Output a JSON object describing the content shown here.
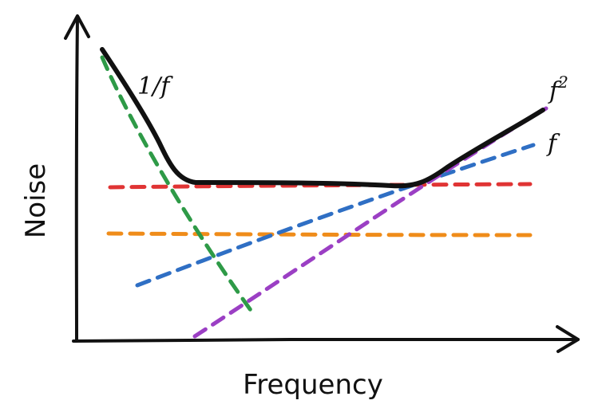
{
  "axes": {
    "x_label": "Frequency",
    "y_label": "Noise"
  },
  "curve_labels": {
    "one_over_f": "1/f",
    "f_base": "f",
    "f_squared_base": "f",
    "f_squared_exp": "2",
    "f_linear": "f"
  },
  "colors": {
    "axis": "#111111",
    "total_noise": "#111111",
    "one_over_f_line": "#2e9a47",
    "white_noise_high_line": "#e03434",
    "white_noise_low_line": "#ef8c1a",
    "f_line": "#2f6fc4",
    "f_squared_line": "#9b3fc4"
  }
}
